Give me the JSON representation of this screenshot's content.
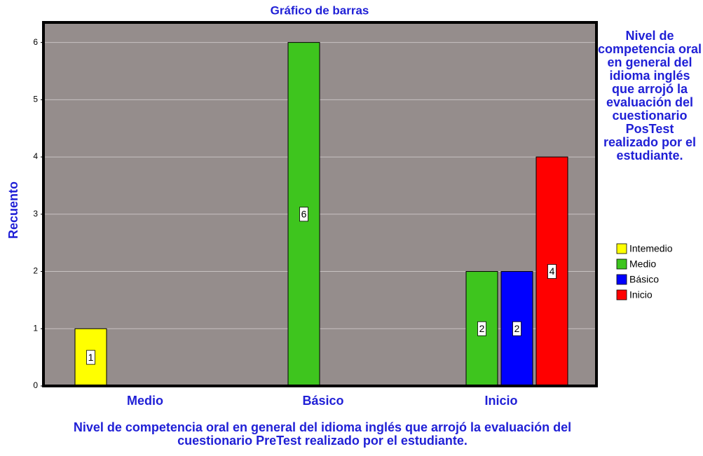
{
  "chart_data": {
    "type": "bar",
    "title": "Gráfico de barras",
    "y_label": "Recuento",
    "x_label": "Nivel de competencia oral en general del idioma inglés que arrojó la evaluación  del cuestionario PreTest realizado por el estudiante.",
    "legend_title": "Nivel de competencia oral en general del idioma inglés que arrojó la evaluación del cuestionario PosTest realizado por el estudiante.",
    "categories": [
      "Medio",
      "Básico",
      "Inicio"
    ],
    "series": [
      {
        "name": "Intemedio",
        "color": "#ffff00",
        "values": [
          1,
          null,
          null
        ]
      },
      {
        "name": "Medio",
        "color": "#3ec51e",
        "values": [
          null,
          6,
          2
        ]
      },
      {
        "name": "Básico",
        "color": "#0000ff",
        "values": [
          null,
          null,
          2
        ]
      },
      {
        "name": "Inicio",
        "color": "#ff0000",
        "values": [
          null,
          null,
          4
        ]
      }
    ],
    "ylim": [
      0,
      6.35
    ],
    "yticks": [
      0,
      1,
      2,
      3,
      4,
      5,
      6
    ],
    "grid": true,
    "plot_color": "#958d8c",
    "legend": "right"
  }
}
